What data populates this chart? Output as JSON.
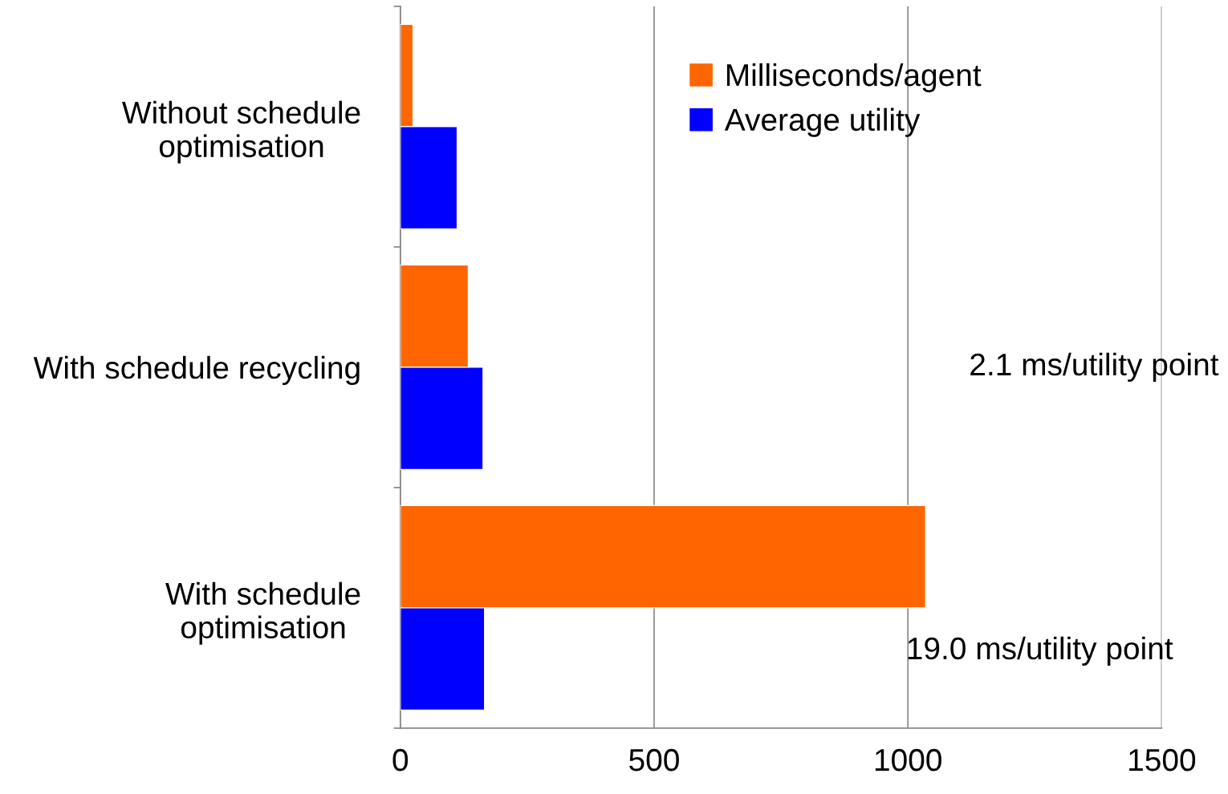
{
  "chart_data": {
    "type": "bar",
    "orientation": "horizontal",
    "categories": [
      "Without schedule\noptimisation",
      "With schedule recycling",
      "With schedule\noptimisation"
    ],
    "series": [
      {
        "name": "Milliseconds/agent",
        "color": "#ff6600",
        "values": [
          25,
          134,
          1035
        ]
      },
      {
        "name": "Average utility",
        "color": "#0000ff",
        "values": [
          112,
          163,
          166
        ]
      }
    ],
    "xlim": [
      0,
      1500
    ],
    "xticks": [
      0,
      500,
      1000,
      1500
    ],
    "grid": "x",
    "legend": "top right",
    "annotations": [
      "2.1 ms/utility point",
      "19.0 ms/utility point"
    ]
  }
}
